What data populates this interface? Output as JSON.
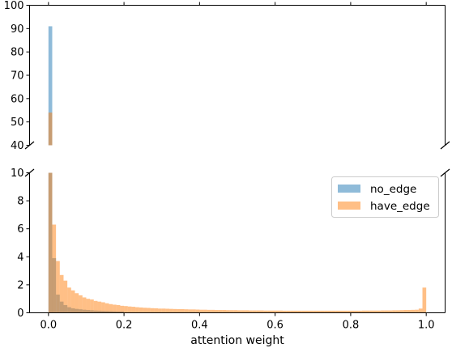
{
  "chart_data": {
    "type": "histogram",
    "title": "",
    "xlabel": "attention weight",
    "ylabel": "",
    "xlim": [
      -0.05,
      1.05
    ],
    "broken_y_axis": true,
    "upper_ylim": [
      40,
      100
    ],
    "lower_ylim": [
      0,
      10
    ],
    "upper_yticks": [
      "40",
      "50",
      "60",
      "70",
      "80",
      "90",
      "100"
    ],
    "lower_yticks": [
      "0",
      "2",
      "4",
      "6",
      "8",
      "10"
    ],
    "xticks": [
      "0.0",
      "0.2",
      "0.4",
      "0.6",
      "0.8",
      "1.0"
    ],
    "legend_position": "right, upper part of lower panel",
    "bin_width": 0.01,
    "series": [
      {
        "name": "no_edge",
        "color": "#1f77b4",
        "alpha": 0.5,
        "bin_starts": [
          0.0,
          0.01,
          0.02,
          0.03,
          0.04,
          0.05,
          0.06,
          0.07,
          0.08,
          0.09,
          0.1,
          0.11,
          0.12,
          0.13,
          0.14,
          0.15,
          0.16,
          0.17,
          0.18,
          0.19
        ],
        "values": [
          91,
          3.9,
          1.3,
          0.8,
          0.55,
          0.4,
          0.32,
          0.28,
          0.25,
          0.22,
          0.2,
          0.18,
          0.16,
          0.15,
          0.14,
          0.13,
          0.12,
          0.11,
          0.1,
          0.1
        ]
      },
      {
        "name": "have_edge",
        "color": "#ff7f0e",
        "alpha": 0.5,
        "bin_starts": [
          0.0,
          0.01,
          0.02,
          0.03,
          0.04,
          0.05,
          0.06,
          0.07,
          0.08,
          0.09,
          0.1,
          0.11,
          0.12,
          0.13,
          0.14,
          0.15,
          0.16,
          0.17,
          0.18,
          0.19,
          0.2,
          0.21,
          0.22,
          0.23,
          0.24,
          0.25,
          0.26,
          0.27,
          0.28,
          0.29,
          0.3,
          0.31,
          0.32,
          0.33,
          0.34,
          0.35,
          0.36,
          0.37,
          0.38,
          0.39,
          0.4,
          0.41,
          0.42,
          0.43,
          0.44,
          0.45,
          0.46,
          0.47,
          0.48,
          0.49,
          0.5,
          0.51,
          0.52,
          0.53,
          0.54,
          0.55,
          0.56,
          0.57,
          0.58,
          0.59,
          0.6,
          0.61,
          0.62,
          0.63,
          0.64,
          0.65,
          0.66,
          0.67,
          0.68,
          0.69,
          0.7,
          0.71,
          0.72,
          0.73,
          0.74,
          0.75,
          0.76,
          0.77,
          0.78,
          0.79,
          0.8,
          0.81,
          0.82,
          0.83,
          0.84,
          0.85,
          0.86,
          0.87,
          0.88,
          0.89,
          0.9,
          0.91,
          0.92,
          0.93,
          0.94,
          0.95,
          0.96,
          0.97,
          0.98,
          0.99
        ],
        "values": [
          54,
          6.3,
          3.7,
          2.7,
          2.3,
          1.8,
          1.6,
          1.4,
          1.25,
          1.1,
          1.0,
          0.95,
          0.85,
          0.8,
          0.75,
          0.68,
          0.62,
          0.58,
          0.55,
          0.5,
          0.48,
          0.45,
          0.43,
          0.4,
          0.38,
          0.36,
          0.35,
          0.33,
          0.32,
          0.3,
          0.3,
          0.29,
          0.28,
          0.27,
          0.26,
          0.26,
          0.25,
          0.24,
          0.24,
          0.23,
          0.22,
          0.22,
          0.21,
          0.21,
          0.2,
          0.2,
          0.2,
          0.19,
          0.19,
          0.19,
          0.18,
          0.18,
          0.18,
          0.17,
          0.17,
          0.17,
          0.17,
          0.16,
          0.16,
          0.16,
          0.16,
          0.16,
          0.15,
          0.15,
          0.15,
          0.15,
          0.15,
          0.15,
          0.15,
          0.15,
          0.15,
          0.15,
          0.15,
          0.15,
          0.15,
          0.15,
          0.15,
          0.15,
          0.15,
          0.15,
          0.15,
          0.15,
          0.15,
          0.16,
          0.16,
          0.16,
          0.16,
          0.16,
          0.17,
          0.17,
          0.17,
          0.18,
          0.18,
          0.19,
          0.2,
          0.2,
          0.21,
          0.22,
          0.3,
          1.8
        ]
      }
    ]
  }
}
